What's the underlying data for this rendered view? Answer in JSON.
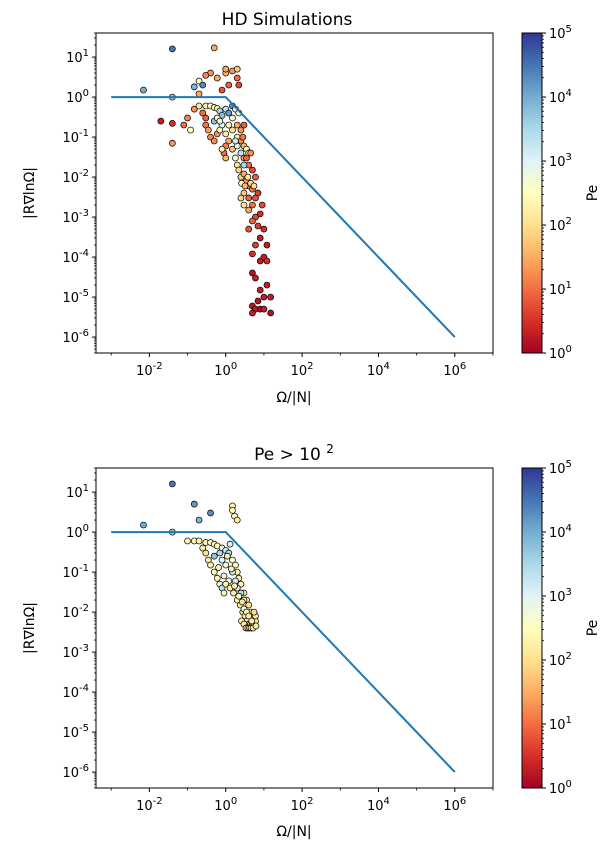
{
  "colorbar": {
    "label": "Pe",
    "ticks": [
      "10^0",
      "10^1",
      "10^2",
      "10^3",
      "10^4",
      "10^5"
    ],
    "scale": "log",
    "range": [
      1,
      100000
    ],
    "colormap": "RdYlBu",
    "stops": [
      "#a50026",
      "#d73027",
      "#f46d43",
      "#fdae61",
      "#fee090",
      "#ffffbf",
      "#e0f3f8",
      "#abd9e9",
      "#74add1",
      "#4575b4",
      "#313695"
    ]
  },
  "chart_data": [
    {
      "type": "scatter",
      "title": "HD Simulations",
      "xlabel": "Ω/|N|",
      "ylabel": "|R∇lnΩ|",
      "xscale": "log",
      "yscale": "log",
      "xlim": [
        0.0004,
        10000000
      ],
      "ylim": [
        4e-07,
        40
      ],
      "xticks": [
        "10^-2",
        "10^0",
        "10^2",
        "10^4",
        "10^6"
      ],
      "yticks": [
        "10^-6",
        "10^-5",
        "10^-4",
        "10^-3",
        "10^-2",
        "10^-1",
        "10^0",
        "10^1"
      ],
      "legend": "none",
      "grid": false,
      "line": {
        "color": "#1f77b4",
        "x": [
          0.001,
          1,
          1000000
        ],
        "y": [
          1,
          1,
          1e-06
        ]
      },
      "points": [
        [
          0.04,
          16,
          30000
        ],
        [
          0.5,
          17,
          30
        ],
        [
          0.007,
          1.5,
          10000
        ],
        [
          0.04,
          1,
          5000
        ],
        [
          0.2,
          2.5,
          300
        ],
        [
          0.2,
          1.2,
          30
        ],
        [
          0.4,
          4,
          20
        ],
        [
          0.6,
          3,
          30
        ],
        [
          1,
          4,
          40
        ],
        [
          1,
          5,
          30
        ],
        [
          1.5,
          4.5,
          20
        ],
        [
          2,
          5,
          60
        ],
        [
          2,
          3,
          10
        ],
        [
          1.2,
          2,
          8
        ],
        [
          0.3,
          3.5,
          15
        ],
        [
          0.15,
          1.8,
          8000
        ],
        [
          0.25,
          2,
          20000
        ],
        [
          0.8,
          1.5,
          6
        ],
        [
          2.2,
          2,
          5
        ],
        [
          0.02,
          0.25,
          2
        ],
        [
          0.04,
          0.22,
          3
        ],
        [
          0.04,
          0.07,
          20
        ],
        [
          0.08,
          0.2,
          10
        ],
        [
          0.1,
          0.3,
          15
        ],
        [
          0.15,
          0.5,
          20
        ],
        [
          0.12,
          0.15,
          300
        ],
        [
          0.2,
          0.6,
          150
        ],
        [
          0.3,
          0.6,
          200
        ],
        [
          0.4,
          0.6,
          300
        ],
        [
          0.5,
          0.55,
          250
        ],
        [
          0.6,
          0.52,
          200
        ],
        [
          0.25,
          0.4,
          10
        ],
        [
          0.3,
          0.3,
          8
        ],
        [
          0.3,
          0.2,
          12
        ],
        [
          0.35,
          0.15,
          25
        ],
        [
          0.4,
          0.1,
          15
        ],
        [
          0.5,
          0.08,
          18
        ],
        [
          0.6,
          0.12,
          20
        ],
        [
          0.5,
          0.25,
          5000
        ],
        [
          0.7,
          0.45,
          3000
        ],
        [
          0.8,
          0.35,
          6000
        ],
        [
          1,
          0.5,
          2000
        ],
        [
          1.2,
          0.4,
          15000
        ],
        [
          1.5,
          0.6,
          20000
        ],
        [
          1.5,
          0.3,
          500
        ],
        [
          1.2,
          0.2,
          300
        ],
        [
          0.8,
          0.2,
          1000
        ],
        [
          0.7,
          0.15,
          200
        ],
        [
          1,
          0.12,
          150
        ],
        [
          1.5,
          0.15,
          100
        ],
        [
          2,
          0.1,
          150
        ],
        [
          2,
          0.2,
          30
        ],
        [
          2.5,
          0.15,
          20
        ],
        [
          2.5,
          0.08,
          15
        ],
        [
          3,
          0.06,
          40
        ],
        [
          3,
          0.03,
          20
        ],
        [
          1.5,
          0.05,
          50
        ],
        [
          1.2,
          0.08,
          30
        ],
        [
          1,
          0.06,
          15
        ],
        [
          0.9,
          0.04,
          10
        ],
        [
          0.8,
          0.05,
          200
        ],
        [
          1.8,
          0.03,
          300
        ],
        [
          2,
          0.02,
          150
        ],
        [
          2.2,
          0.015,
          80
        ],
        [
          2.5,
          0.01,
          60
        ],
        [
          3,
          0.012,
          30
        ],
        [
          3.5,
          0.008,
          20
        ],
        [
          4,
          0.006,
          15
        ],
        [
          4,
          0.02,
          10
        ],
        [
          3.5,
          0.03,
          8
        ],
        [
          5,
          0.015,
          5
        ],
        [
          5,
          0.005,
          12
        ],
        [
          4,
          0.003,
          8
        ],
        [
          3,
          0.004,
          60
        ],
        [
          3,
          0.002,
          120
        ],
        [
          2.5,
          0.003,
          80
        ],
        [
          5,
          0.002,
          10
        ],
        [
          6,
          0.003,
          6
        ],
        [
          6,
          0.001,
          5
        ],
        [
          4,
          0.0015,
          30
        ],
        [
          5,
          0.0008,
          8
        ],
        [
          7,
          0.0006,
          4
        ],
        [
          4,
          0.0005,
          6
        ],
        [
          8,
          0.0012,
          3
        ],
        [
          10,
          0.0005,
          3
        ],
        [
          8,
          0.0003,
          2
        ],
        [
          6,
          0.0002,
          4
        ],
        [
          5,
          0.00012,
          3
        ],
        [
          8,
          8e-05,
          2
        ],
        [
          10,
          0.0001,
          2
        ],
        [
          12,
          0.0002,
          2
        ],
        [
          12,
          8e-05,
          3
        ],
        [
          5,
          4e-05,
          1.5
        ],
        [
          6,
          3e-05,
          2
        ],
        [
          8,
          1.5e-05,
          2
        ],
        [
          10,
          1e-05,
          2
        ],
        [
          12,
          2e-05,
          2
        ],
        [
          15,
          1e-05,
          2
        ],
        [
          7,
          8e-06,
          1.5
        ],
        [
          5,
          6e-06,
          1.5
        ],
        [
          6,
          5e-06,
          2
        ],
        [
          8,
          5e-06,
          1.5
        ],
        [
          10,
          5e-06,
          2
        ],
        [
          15,
          4e-06,
          1.5
        ],
        [
          5,
          4e-06,
          2
        ],
        [
          2,
          0.06,
          800
        ],
        [
          1.8,
          0.08,
          1500
        ],
        [
          3.5,
          0.05,
          300
        ],
        [
          4,
          0.04,
          200
        ],
        [
          2.5,
          0.04,
          2000
        ],
        [
          3,
          0.02,
          3000
        ],
        [
          1,
          0.03,
          40
        ],
        [
          0.6,
          0.3,
          400
        ],
        [
          0.7,
          0.25,
          600
        ],
        [
          1.8,
          0.5,
          1000
        ],
        [
          2.2,
          0.4,
          500
        ],
        [
          3,
          0.2,
          8
        ],
        [
          2.8,
          0.1,
          12
        ],
        [
          4.5,
          0.04,
          18
        ],
        [
          6,
          0.01,
          7
        ],
        [
          7,
          0.004,
          4
        ],
        [
          9,
          0.002,
          5
        ],
        [
          3.8,
          0.01,
          150
        ],
        [
          4.5,
          0.007,
          100
        ],
        [
          5.5,
          0.006,
          90
        ],
        [
          2.6,
          0.007,
          250
        ],
        [
          3.2,
          0.006,
          45
        ]
      ]
    },
    {
      "type": "scatter",
      "title": "Pe > 10^2",
      "xlabel": "Ω/|N|",
      "ylabel": "|R∇lnΩ|",
      "xscale": "log",
      "yscale": "log",
      "xlim": [
        0.0004,
        10000000
      ],
      "ylim": [
        4e-07,
        40
      ],
      "xticks": [
        "10^-2",
        "10^0",
        "10^2",
        "10^4",
        "10^6"
      ],
      "yticks": [
        "10^-6",
        "10^-5",
        "10^-4",
        "10^-3",
        "10^-2",
        "10^-1",
        "10^0",
        "10^1"
      ],
      "legend": "none",
      "grid": false,
      "line": {
        "color": "#1f77b4",
        "x": [
          0.001,
          1,
          1000000
        ],
        "y": [
          1,
          1,
          1e-06
        ]
      },
      "points": [
        [
          0.04,
          16,
          30000
        ],
        [
          0.007,
          1.5,
          10000
        ],
        [
          0.04,
          1,
          5000
        ],
        [
          0.15,
          5,
          15000
        ],
        [
          0.4,
          3,
          20000
        ],
        [
          1.5,
          4.5,
          200
        ],
        [
          1.5,
          3.5,
          300
        ],
        [
          1.7,
          2.5,
          250
        ],
        [
          2,
          2,
          150
        ],
        [
          0.2,
          2,
          8000
        ],
        [
          0.1,
          0.6,
          200
        ],
        [
          0.15,
          0.6,
          250
        ],
        [
          0.2,
          0.6,
          200
        ],
        [
          0.3,
          0.55,
          300
        ],
        [
          0.4,
          0.55,
          250
        ],
        [
          0.5,
          0.5,
          200
        ],
        [
          0.6,
          0.45,
          300
        ],
        [
          0.8,
          0.4,
          500
        ],
        [
          1,
          0.35,
          1500
        ],
        [
          1.2,
          0.3,
          3000
        ],
        [
          0.25,
          0.4,
          150
        ],
        [
          0.3,
          0.3,
          120
        ],
        [
          0.35,
          0.2,
          150
        ],
        [
          0.4,
          0.15,
          200
        ],
        [
          0.5,
          0.1,
          250
        ],
        [
          0.6,
          0.07,
          300
        ],
        [
          0.7,
          0.05,
          400
        ],
        [
          0.8,
          0.04,
          2000
        ],
        [
          0.9,
          0.03,
          300
        ],
        [
          0.5,
          0.25,
          5000
        ],
        [
          0.7,
          0.3,
          3000
        ],
        [
          0.8,
          0.2,
          1000
        ],
        [
          1,
          0.15,
          600
        ],
        [
          1.5,
          0.2,
          400
        ],
        [
          1.8,
          0.15,
          300
        ],
        [
          2,
          0.1,
          200
        ],
        [
          2.2,
          0.07,
          150
        ],
        [
          2.5,
          0.05,
          200
        ],
        [
          3,
          0.03,
          150
        ],
        [
          3.5,
          0.02,
          120
        ],
        [
          4,
          0.015,
          100
        ],
        [
          4.5,
          0.01,
          150
        ],
        [
          5,
          0.008,
          120
        ],
        [
          1.5,
          0.1,
          2000
        ],
        [
          1.8,
          0.06,
          1500
        ],
        [
          2,
          0.04,
          800
        ],
        [
          2.5,
          0.03,
          3000
        ],
        [
          3,
          0.02,
          500
        ],
        [
          1.2,
          0.06,
          400
        ],
        [
          1,
          0.05,
          250
        ],
        [
          1.3,
          0.04,
          200
        ],
        [
          1.6,
          0.03,
          150
        ],
        [
          2,
          0.02,
          180
        ],
        [
          2.4,
          0.015,
          130
        ],
        [
          2.8,
          0.01,
          110
        ],
        [
          3.2,
          0.008,
          150
        ],
        [
          3.6,
          0.006,
          120
        ],
        [
          4,
          0.005,
          100
        ],
        [
          4.5,
          0.005,
          140
        ],
        [
          5,
          0.005,
          110
        ],
        [
          5.5,
          0.005,
          160
        ],
        [
          6,
          0.006,
          130
        ],
        [
          6,
          0.008,
          120
        ],
        [
          5.5,
          0.01,
          100
        ],
        [
          3,
          0.012,
          600
        ],
        [
          3.5,
          0.01,
          250
        ],
        [
          4,
          0.008,
          180
        ],
        [
          2.6,
          0.006,
          200
        ],
        [
          3,
          0.005,
          150
        ],
        [
          3.4,
          0.004,
          120
        ],
        [
          3.8,
          0.004,
          140
        ],
        [
          4.2,
          0.004,
          110
        ],
        [
          4.6,
          0.004,
          130
        ],
        [
          5.2,
          0.004,
          150
        ],
        [
          1.1,
          0.25,
          180
        ],
        [
          1.4,
          0.12,
          170
        ],
        [
          0.65,
          0.13,
          190
        ],
        [
          1.7,
          0.045,
          160
        ],
        [
          2.2,
          0.025,
          210
        ],
        [
          2.7,
          0.018,
          140
        ],
        [
          4.8,
          0.006,
          170
        ],
        [
          6.2,
          0.0045,
          150
        ],
        [
          1.3,
          0.5,
          1200
        ],
        [
          0.9,
          0.08,
          700
        ]
      ]
    }
  ]
}
